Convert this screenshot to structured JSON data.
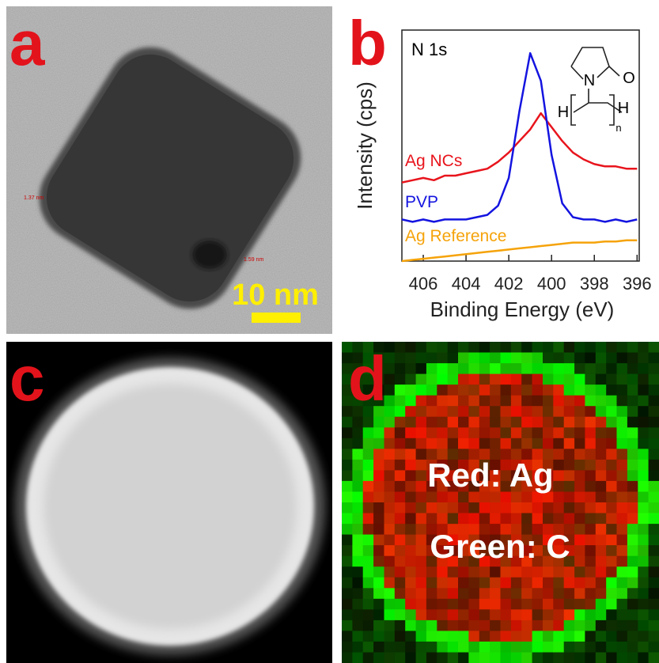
{
  "panels": [
    {
      "label": "a",
      "scale_bar": "10 nm",
      "annotations": [
        "1.37 nm",
        "1.59 nm"
      ]
    },
    {
      "label": "b"
    },
    {
      "label": "c"
    },
    {
      "label": "d",
      "annotations": [
        "Red: Ag",
        "Green: C"
      ]
    }
  ],
  "chart_data": {
    "type": "line",
    "xlabel": "Binding Energy (eV)",
    "ylabel": "Intensity (cps)",
    "annotations": [
      "N 1s"
    ],
    "molecule_labels": [
      "N",
      "O",
      "H",
      "H",
      "n"
    ],
    "x": [
      407,
      406.5,
      406,
      405.5,
      405,
      404.5,
      404,
      403.5,
      403,
      402.5,
      402,
      401.5,
      401,
      400.5,
      400,
      399.5,
      399,
      398.5,
      398,
      397.5,
      397,
      396.5,
      396
    ],
    "xlim": [
      407,
      395.9
    ],
    "xticks": [
      406,
      404,
      402,
      400,
      398,
      396
    ],
    "ylim": [
      0,
      10
    ],
    "series": [
      {
        "name": "Ag NCs",
        "color": "#e8141c",
        "values": [
          3.4,
          3.5,
          3.6,
          3.5,
          3.7,
          3.7,
          3.8,
          3.9,
          4.0,
          4.3,
          4.7,
          5.2,
          5.7,
          6.4,
          5.8,
          5.2,
          4.7,
          4.4,
          4.2,
          4.1,
          4.1,
          4.0,
          4.0
        ]
      },
      {
        "name": "PVP",
        "color": "#1414e0",
        "values": [
          1.8,
          1.7,
          1.8,
          1.7,
          1.8,
          1.8,
          1.8,
          1.9,
          2.0,
          2.4,
          3.6,
          6.5,
          9.0,
          7.8,
          4.6,
          2.5,
          1.9,
          1.8,
          1.8,
          1.7,
          1.8,
          1.7,
          1.8
        ]
      },
      {
        "name": "Ag Reference",
        "color": "#f5a30a",
        "values": [
          0.0,
          0.05,
          0.1,
          0.15,
          0.2,
          0.25,
          0.3,
          0.35,
          0.4,
          0.45,
          0.5,
          0.55,
          0.6,
          0.65,
          0.7,
          0.75,
          0.8,
          0.8,
          0.8,
          0.85,
          0.85,
          0.9,
          0.9
        ]
      }
    ]
  }
}
